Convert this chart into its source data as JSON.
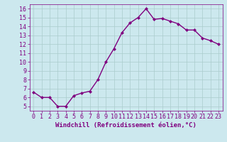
{
  "x": [
    0,
    1,
    2,
    3,
    4,
    5,
    6,
    7,
    8,
    9,
    10,
    11,
    12,
    13,
    14,
    15,
    16,
    17,
    18,
    19,
    20,
    21,
    22,
    23
  ],
  "y": [
    6.6,
    6.0,
    6.0,
    5.0,
    5.0,
    6.2,
    6.5,
    6.7,
    8.0,
    10.0,
    11.5,
    13.3,
    14.4,
    15.0,
    16.0,
    14.8,
    14.9,
    14.6,
    14.3,
    13.6,
    13.6,
    12.7,
    12.4,
    12.0
  ],
  "line_color": "#800080",
  "marker": "D",
  "markersize": 2,
  "linewidth": 1.0,
  "xlabel": "Windchill (Refroidissement éolien,°C)",
  "xlim": [
    -0.5,
    23.5
  ],
  "ylim": [
    4.5,
    16.5
  ],
  "yticks": [
    5,
    6,
    7,
    8,
    9,
    10,
    11,
    12,
    13,
    14,
    15,
    16
  ],
  "xticks": [
    0,
    1,
    2,
    3,
    4,
    5,
    6,
    7,
    8,
    9,
    10,
    11,
    12,
    13,
    14,
    15,
    16,
    17,
    18,
    19,
    20,
    21,
    22,
    23
  ],
  "bg_color": "#cce8ee",
  "grid_color": "#aacccc",
  "tick_color": "#800080",
  "label_color": "#800080",
  "xlabel_fontsize": 6.5,
  "tick_fontsize": 6.0
}
